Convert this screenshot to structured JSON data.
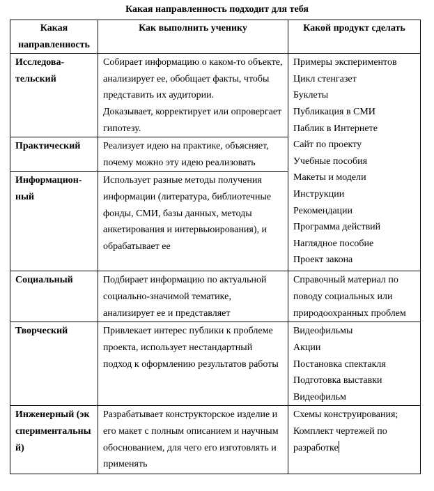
{
  "title": "Какая направленность подходит для тебя",
  "headers": [
    "Какая направленность",
    "Как выполнить ученику",
    "Какой продукт сделать"
  ],
  "rows": [
    {
      "direction": "Исследова-тельский",
      "how": "Собирает информацию о каком-то объекте, анализирует ее, обобщает факты, чтобы представить их аудитории.",
      "how2": "Доказывает, корректирует или опровергает гипотезу."
    },
    {
      "direction": "Практический",
      "how": "Реализует идею на практике, объясняет, почему можно эту идею реализовать"
    },
    {
      "direction": "Информацион-ный",
      "how": "Использует разные методы получения информации (литература, библиотечные фонды, СМИ, базы данных, методы анкетирования и интервьюирования), и обрабатывает ее"
    },
    {
      "direction": "Социальный",
      "how": "Подбирает информацию по актуальной социально-значимой тематике, анализирует ее и представляет"
    },
    {
      "direction": "Творческий",
      "how": "Привлекает интерес публики к проблеме проекта, использует нестандартный подход к оформлению результатов работы"
    },
    {
      "direction": "Инженерный (экспериментальный)",
      "how": "Разрабатывает конструкторское изделие и его макет с полным описанием и научным обоснованием, для чего его изготовлять и применять"
    }
  ],
  "products": {
    "group1": [
      "Примеры экспериментов",
      "Цикл стенгазет",
      "Буклеты",
      "Публикация в СМИ",
      "Паблик в Интернете",
      "Сайт по проекту",
      "Учебные пособия",
      "Макеты и модели",
      "Инструкции",
      "Рекомендации",
      "Программа действий",
      "Наглядное пособие",
      "Проект закона"
    ],
    "social": "Справочный материал по поводу социальных или природоохранных проблем",
    "creative": [
      "Видеофильмы",
      "Акции",
      "Постановка спектакля",
      "Подготовка выставки",
      "Видеофильм"
    ],
    "engineering": [
      "Схемы конструирования;",
      "Комплект чертежей по разработке"
    ]
  }
}
